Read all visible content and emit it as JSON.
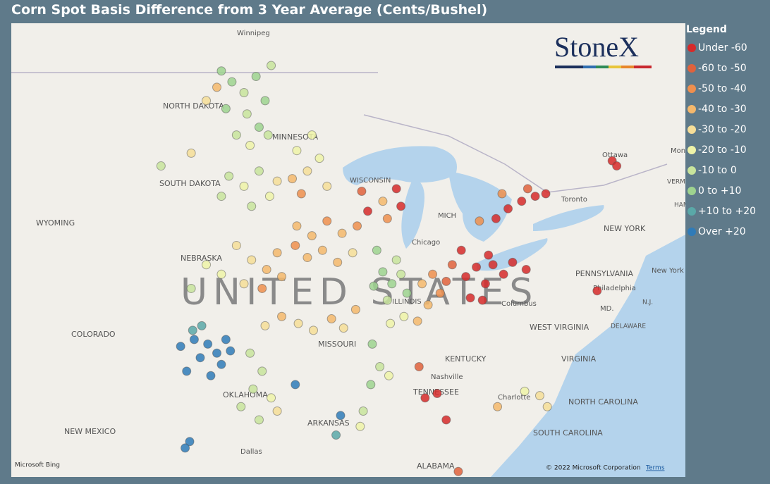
{
  "chart_data": {
    "type": "map",
    "title": "Corn Spot Basis Difference from 3 Year Average (Cents/Bushel)",
    "legend_title": "Legend",
    "legend": [
      {
        "label": "Under -60",
        "color": "#d62a2a"
      },
      {
        "label": "-60 to -50",
        "color": "#e0623c"
      },
      {
        "label": "-50 to -40",
        "color": "#ef8f4e"
      },
      {
        "label": "-40 to -30",
        "color": "#f5b86c"
      },
      {
        "label": "-30 to -20",
        "color": "#f6de98"
      },
      {
        "label": "-20 to -10",
        "color": "#eef3a8"
      },
      {
        "label": "-10 to 0",
        "color": "#c8e49c"
      },
      {
        "label": "0 to +10",
        "color": "#9ed38f"
      },
      {
        "label": "+10 to +20",
        "color": "#5aa8a8"
      },
      {
        "label": "Over +20",
        "color": "#2f7bb8"
      }
    ],
    "bin_edges": [
      -60,
      -50,
      -40,
      -30,
      -20,
      -10,
      0,
      10,
      20
    ],
    "points": [
      [
        -100.5,
        48.6,
        2
      ],
      [
        -99.8,
        48.2,
        3
      ],
      [
        -99,
        47.8,
        -5
      ],
      [
        -98.2,
        48.4,
        4
      ],
      [
        -97.6,
        47.5,
        2
      ],
      [
        -98.8,
        47,
        -6
      ],
      [
        -100.2,
        47.2,
        5
      ],
      [
        -97.2,
        48.8,
        -8
      ],
      [
        -98,
        46.5,
        3
      ],
      [
        -99.5,
        46.2,
        -4
      ],
      [
        -100.8,
        48,
        -35
      ],
      [
        -101.5,
        47.5,
        -30
      ],
      [
        -97.4,
        46.2,
        -2
      ],
      [
        -98.6,
        45.8,
        -12
      ],
      [
        -104.5,
        45,
        -8
      ],
      [
        -102.5,
        45.5,
        -25
      ],
      [
        -100,
        44.6,
        -6
      ],
      [
        -99,
        44.2,
        -14
      ],
      [
        -98,
        44.8,
        -4
      ],
      [
        -97.3,
        43.8,
        -18
      ],
      [
        -98.5,
        43.4,
        -9
      ],
      [
        -100.5,
        43.8,
        -3
      ],
      [
        -96.8,
        44.4,
        -22
      ],
      [
        -95.5,
        45.6,
        -18
      ],
      [
        -94.8,
        44.8,
        -22
      ],
      [
        -94,
        45.3,
        -16
      ],
      [
        -95.8,
        44.5,
        -34
      ],
      [
        -93.5,
        44.2,
        -26
      ],
      [
        -94.5,
        46.2,
        -12
      ],
      [
        -95.2,
        43.9,
        -44
      ],
      [
        -99.5,
        41.8,
        -25
      ],
      [
        -98.5,
        41.2,
        -28
      ],
      [
        -97.5,
        40.8,
        -32
      ],
      [
        -96.8,
        41.5,
        -36
      ],
      [
        -100.5,
        40.6,
        -15
      ],
      [
        -99,
        40.2,
        -22
      ],
      [
        -97.8,
        40,
        -44
      ],
      [
        -96.5,
        40.5,
        -33
      ],
      [
        -101.5,
        41,
        -12
      ],
      [
        -102.5,
        40,
        -6
      ],
      [
        -95.5,
        42.6,
        -38
      ],
      [
        -94.5,
        42.2,
        -34
      ],
      [
        -93.5,
        42.8,
        -42
      ],
      [
        -92.5,
        42.3,
        -36
      ],
      [
        -91.5,
        42.6,
        -46
      ],
      [
        -94.8,
        41.3,
        -40
      ],
      [
        -93.8,
        41.6,
        -32
      ],
      [
        -92.8,
        41.1,
        -38
      ],
      [
        -91.8,
        41.5,
        -27
      ],
      [
        -95.6,
        41.8,
        -45
      ],
      [
        -90.8,
        43.2,
        -64
      ],
      [
        -89.8,
        43.6,
        -36
      ],
      [
        -88.6,
        43.4,
        -66
      ],
      [
        -88.9,
        44.1,
        -62
      ],
      [
        -89.5,
        42.9,
        -42
      ],
      [
        -91.2,
        44,
        -53
      ],
      [
        -89.8,
        40.7,
        2
      ],
      [
        -89.2,
        40.2,
        4
      ],
      [
        -88.6,
        40.6,
        -3
      ],
      [
        -88.2,
        39.8,
        5
      ],
      [
        -89.5,
        39.5,
        -6
      ],
      [
        -90.4,
        40.1,
        1
      ],
      [
        -88.9,
        41.2,
        -8
      ],
      [
        -90.2,
        41.6,
        6
      ],
      [
        -88.4,
        38.8,
        -14
      ],
      [
        -89.3,
        38.5,
        -18
      ],
      [
        -87.2,
        40.2,
        -38
      ],
      [
        -86.5,
        40.6,
        -42
      ],
      [
        -86,
        39.8,
        -46
      ],
      [
        -85.6,
        40.3,
        -52
      ],
      [
        -86.8,
        39.3,
        -36
      ],
      [
        -87.5,
        38.6,
        -32
      ],
      [
        -85.2,
        41,
        -58
      ],
      [
        -84.3,
        40.5,
        -66
      ],
      [
        -83.6,
        40.9,
        -68
      ],
      [
        -83,
        40.2,
        -63
      ],
      [
        -82.5,
        41,
        -70
      ],
      [
        -81.8,
        40.6,
        -64
      ],
      [
        -84,
        39.6,
        -66
      ],
      [
        -83.2,
        39.5,
        -62
      ],
      [
        -82.8,
        41.4,
        -72
      ],
      [
        -81.2,
        41.1,
        -61
      ],
      [
        -80.3,
        40.8,
        -65
      ],
      [
        -84.6,
        41.6,
        -63
      ],
      [
        -82.3,
        42.9,
        -64
      ],
      [
        -81.5,
        43.3,
        -67
      ],
      [
        -80.6,
        43.6,
        -62
      ],
      [
        -79.7,
        43.8,
        -65
      ],
      [
        -80.2,
        44.1,
        -55
      ],
      [
        -81.9,
        43.9,
        -45
      ],
      [
        -83.4,
        42.8,
        -48
      ],
      [
        -79,
        43.9,
        -66
      ],
      [
        -74.6,
        45.2,
        -65
      ],
      [
        -74.3,
        45,
        -66
      ],
      [
        -75.6,
        39.9,
        -63
      ],
      [
        -86.2,
        35.4,
        -63
      ],
      [
        -87,
        35.2,
        -66
      ],
      [
        -85.6,
        34.2,
        -61
      ],
      [
        -87.4,
        36.6,
        -58
      ],
      [
        -93.2,
        38.7,
        -34
      ],
      [
        -92.4,
        38.3,
        -28
      ],
      [
        -91.6,
        39.1,
        -36
      ],
      [
        -94.4,
        38.2,
        -24
      ],
      [
        -95.4,
        38.5,
        -30
      ],
      [
        -96.5,
        38.8,
        -38
      ],
      [
        -97.6,
        38.4,
        -26
      ],
      [
        -98.6,
        37.2,
        -6
      ],
      [
        -97.8,
        36.4,
        -9
      ],
      [
        -98.4,
        35.6,
        -4
      ],
      [
        -97.2,
        35.2,
        -14
      ],
      [
        -99.2,
        34.8,
        -2
      ],
      [
        -96.8,
        34.6,
        -22
      ],
      [
        -98,
        34.2,
        -8
      ],
      [
        -101.4,
        37.6,
        26
      ],
      [
        -100.8,
        37.2,
        28
      ],
      [
        -100.2,
        37.8,
        24
      ],
      [
        -101.9,
        37,
        30
      ],
      [
        -100.5,
        36.7,
        22
      ],
      [
        -102.3,
        37.8,
        25
      ],
      [
        -99.9,
        37.3,
        27
      ],
      [
        -102.8,
        36.4,
        24
      ],
      [
        -101.2,
        36.2,
        29
      ],
      [
        -103.2,
        37.5,
        22
      ],
      [
        -102.4,
        38.2,
        14
      ],
      [
        -101.8,
        38.4,
        16
      ],
      [
        -102.6,
        33.2,
        23
      ],
      [
        -102.9,
        32.9,
        26
      ],
      [
        -95.6,
        35.8,
        24
      ],
      [
        -92.6,
        34.4,
        22
      ],
      [
        -92.9,
        33.5,
        18
      ],
      [
        -90.5,
        37.6,
        6
      ],
      [
        -90,
        36.6,
        -4
      ],
      [
        -90.6,
        35.8,
        3
      ],
      [
        -91.1,
        34.6,
        -7
      ],
      [
        -91.3,
        33.9,
        -14
      ],
      [
        -89.4,
        36.2,
        -12
      ],
      [
        -80.4,
        35.5,
        -18
      ],
      [
        -79.4,
        35.3,
        -22
      ],
      [
        -78.9,
        34.8,
        -26
      ],
      [
        -82.2,
        34.8,
        -36
      ],
      [
        -84.8,
        31.8,
        -58
      ]
    ]
  },
  "map_labels": [
    "Winnipeg",
    "NORTH DAKOTA",
    "MINNESOTA",
    "SOUTH DAKOTA",
    "WYOMING",
    "NEBRASKA",
    "UNITED STATES",
    "COLORADO",
    "MISSOURI",
    "OKLAHOMA",
    "ARKANSAS",
    "NEW MEXICO",
    "Dallas",
    "TENNESSEE",
    "Nashville",
    "KENTUCKY",
    "WEST VIRGINIA",
    "VIRGINIA",
    "NORTH CAROLINA",
    "SOUTH CAROLINA",
    "ALABAMA",
    "Charlotte",
    "Columbus",
    "Chicago",
    "PENNSYLVANIA",
    "Philadelphia",
    "NEW YORK",
    "New York",
    "Ottawa",
    "Montreal",
    "DELAWARE",
    "MD.",
    "N.J.",
    "Toronto",
    "MICH",
    "WISCONSIN",
    "ILLINOIS",
    "VERMONT",
    "HAMP"
  ],
  "logo": "StoneX",
  "attribution": "Microsoft Bing",
  "copyright": "© 2022 Microsoft Corporation",
  "terms": "Terms"
}
